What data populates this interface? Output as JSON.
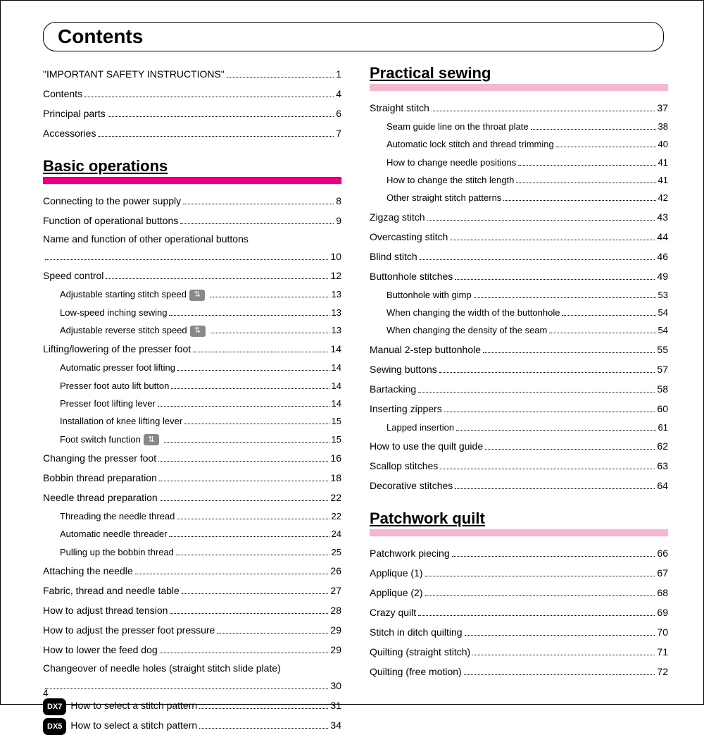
{
  "title": "Contents",
  "pageNumber": "4",
  "colors": {
    "strong": "#e6007e",
    "light": "#f7b6d2",
    "badge_bg": "#888",
    "dx_bg": "#000"
  },
  "left": {
    "top": [
      {
        "label": "\"IMPORTANT SAFETY INSTRUCTIONS\"",
        "page": "1"
      },
      {
        "label": "Contents",
        "page": "4"
      },
      {
        "label": "Principal parts",
        "page": "6"
      },
      {
        "label": "Accessories",
        "page": "7"
      }
    ],
    "section": "Basic operations",
    "items": [
      {
        "label": "Connecting to the power supply",
        "page": "8"
      },
      {
        "label": "Function of operational buttons",
        "page": "9"
      },
      {
        "label": "Name and function of other operational buttons",
        "page": "10",
        "wrap": true
      },
      {
        "label": "Speed control",
        "page": "12"
      },
      {
        "label": "Adjustable starting stitch speed",
        "page": "13",
        "sub": true,
        "icon": true
      },
      {
        "label": "Low-speed inching sewing",
        "page": "13",
        "sub": true
      },
      {
        "label": "Adjustable reverse stitch speed",
        "page": "13",
        "sub": true,
        "icon": true
      },
      {
        "label": "Lifting/lowering of the presser foot",
        "page": "14"
      },
      {
        "label": "Automatic presser foot lifting",
        "page": "14",
        "sub": true
      },
      {
        "label": "Presser foot auto lift button",
        "page": "14",
        "sub": true
      },
      {
        "label": "Presser foot lifting lever",
        "page": "14",
        "sub": true
      },
      {
        "label": "Installation of knee lifting lever",
        "page": "15",
        "sub": true
      },
      {
        "label": "Foot switch function",
        "page": "15",
        "sub": true,
        "icon": true
      },
      {
        "label": "Changing the presser foot",
        "page": "16"
      },
      {
        "label": "Bobbin thread preparation",
        "page": "18"
      },
      {
        "label": "Needle thread preparation",
        "page": "22"
      },
      {
        "label": "Threading the needle thread",
        "page": "22",
        "sub": true
      },
      {
        "label": "Automatic needle threader",
        "page": "24",
        "sub": true
      },
      {
        "label": "Pulling up the bobbin thread",
        "page": "25",
        "sub": true
      },
      {
        "label": "Attaching the needle",
        "page": "26"
      },
      {
        "label": "Fabric, thread and needle table",
        "page": "27"
      },
      {
        "label": "How to adjust thread tension",
        "page": "28"
      },
      {
        "label": "How to adjust the presser foot pressure",
        "page": "29"
      },
      {
        "label": "How to lower the feed dog",
        "page": "29"
      },
      {
        "label": "Changeover of needle holes (straight stitch slide plate)",
        "page": "30",
        "wrap": true
      },
      {
        "label": "How to select a stitch pattern",
        "page": "31",
        "dx": "DX7"
      },
      {
        "label": "How to select a stitch pattern",
        "page": "34",
        "dx": "DX5"
      }
    ]
  },
  "right": {
    "section1": "Practical sewing",
    "items1": [
      {
        "label": "Straight stitch",
        "page": "37"
      },
      {
        "label": "Seam guide line on the throat plate",
        "page": "38",
        "sub": true
      },
      {
        "label": "Automatic lock stitch and thread trimming",
        "page": "40",
        "sub": true
      },
      {
        "label": "How to change needle positions",
        "page": "41",
        "sub": true
      },
      {
        "label": "How to change the stitch length",
        "page": "41",
        "sub": true
      },
      {
        "label": "Other straight stitch patterns",
        "page": "42",
        "sub": true
      },
      {
        "label": "Zigzag stitch",
        "page": "43"
      },
      {
        "label": "Overcasting stitch",
        "page": "44"
      },
      {
        "label": "Blind stitch",
        "page": "46"
      },
      {
        "label": "Buttonhole stitches",
        "page": "49"
      },
      {
        "label": "Buttonhole with gimp",
        "page": "53",
        "sub": true
      },
      {
        "label": "When changing the width of the buttonhole",
        "page": "54",
        "sub": true
      },
      {
        "label": "When changing the density of the seam",
        "page": "54",
        "sub": true
      },
      {
        "label": "Manual 2-step buttonhole",
        "page": "55"
      },
      {
        "label": "Sewing buttons",
        "page": "57"
      },
      {
        "label": "Bartacking",
        "page": "58"
      },
      {
        "label": "Inserting zippers",
        "page": "60"
      },
      {
        "label": "Lapped insertion",
        "page": "61",
        "sub": true
      },
      {
        "label": "How to use the quilt guide",
        "page": "62"
      },
      {
        "label": "Scallop stitches",
        "page": "63"
      },
      {
        "label": "Decorative stitches",
        "page": "64"
      }
    ],
    "section2": "Patchwork quilt",
    "items2": [
      {
        "label": "Patchwork piecing",
        "page": "66"
      },
      {
        "label": "Applique (1)",
        "page": "67"
      },
      {
        "label": "Applique (2)",
        "page": "68"
      },
      {
        "label": "Crazy quilt",
        "page": "69"
      },
      {
        "label": "Stitch in ditch quilting",
        "page": "70"
      },
      {
        "label": "Quilting (straight stitch)",
        "page": "71"
      },
      {
        "label": "Quilting (free motion)",
        "page": "72"
      }
    ]
  }
}
